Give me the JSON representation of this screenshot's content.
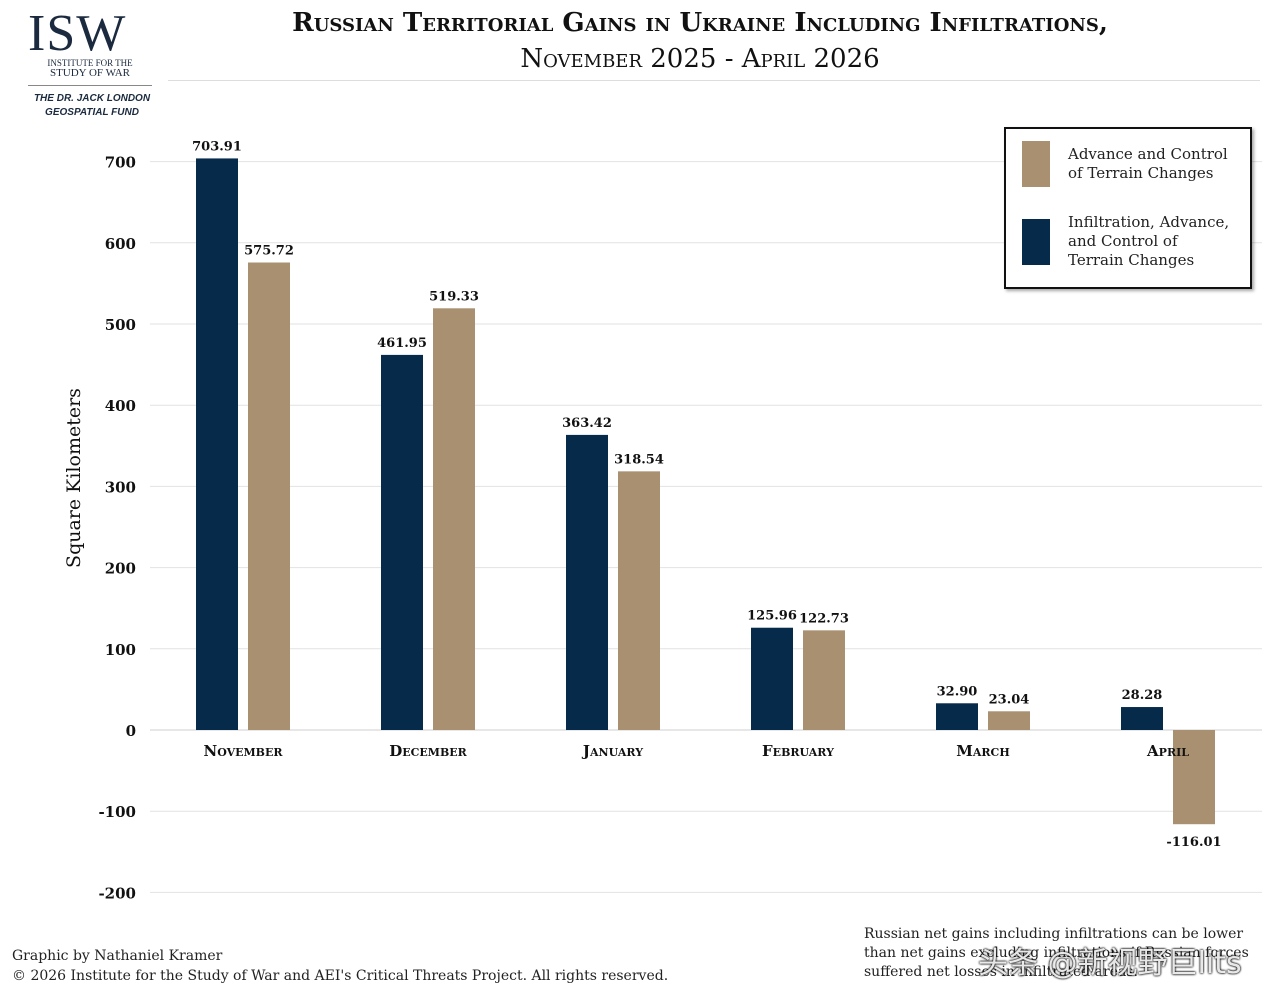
{
  "logo": {
    "mark": "ISW",
    "sub1": "INSTITUTE FOR THE",
    "sub2": "STUDY OF WAR"
  },
  "fund": {
    "line1": "THE DR. JACK LONDON",
    "line2": "GEOSPATIAL FUND"
  },
  "header": {
    "title": "Russian Territorial Gains in Ukraine Including Infiltrations,",
    "subtitle": "November 2025 - April 2026"
  },
  "chart_data": {
    "type": "bar",
    "categories": [
      "November",
      "December",
      "January",
      "February",
      "March",
      "April"
    ],
    "series": [
      {
        "name": "Infiltration, Advance, and Control of Terrain Changes",
        "values": [
          703.91,
          461.95,
          363.42,
          125.96,
          32.9,
          28.28
        ],
        "labels": [
          "703.91",
          "461.95",
          "363.42",
          "125.96",
          "32.90",
          "28.28"
        ],
        "color": "#062a4a"
      },
      {
        "name": "Advance and Control of Terrain Changes",
        "values": [
          575.72,
          519.33,
          318.54,
          122.73,
          23.04,
          -116.01
        ],
        "labels": [
          "575.72",
          "519.33",
          "318.54",
          "122.73",
          "23.04",
          "-116.01"
        ],
        "color": "#a89070"
      }
    ],
    "ylabel": "Square Kilometers",
    "ylim": [
      -200,
      700
    ],
    "yticks": [
      "-200",
      "-100",
      "0",
      "100",
      "200",
      "300",
      "400",
      "500",
      "600",
      "700"
    ],
    "grid": true,
    "legend_position": "top-right"
  },
  "legend": {
    "item1_line1": "Advance and Control",
    "item1_line2": "of Terrain Changes",
    "item2_line1": "Infiltration, Advance,",
    "item2_line2": "and Control of",
    "item2_line3": "Terrain Changes"
  },
  "footer": {
    "credit": "Graphic by Nathaniel Kramer",
    "copyright": "© 2026 Institute for the Study of War and AEI's Critical Threats Project. All rights reserved.",
    "note": "Russian net gains including infiltrations can be lower than net gains excluding infiltrations if Russian forces suffered net losses in infiltrated areas."
  },
  "watermark": "头条 @新视野巨lits"
}
